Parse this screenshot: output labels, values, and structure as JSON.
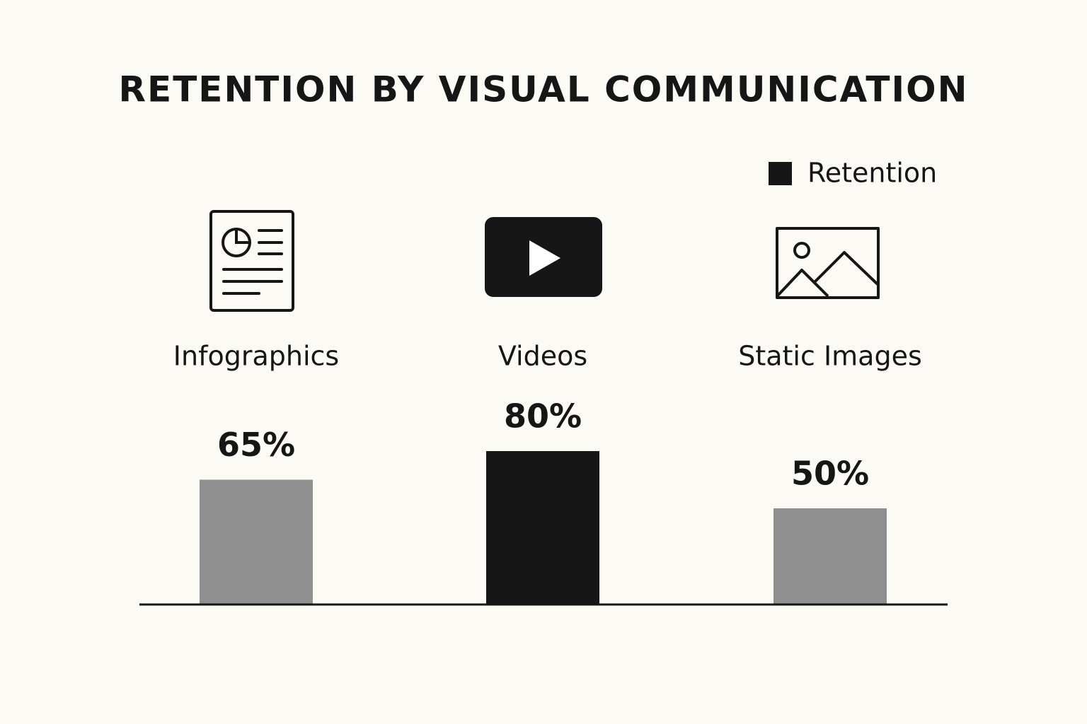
{
  "chart_data": {
    "type": "bar",
    "title": "RETENTION BY VISUAL COMMUNICATION",
    "categories": [
      "Infographics",
      "Videos",
      "Static Images"
    ],
    "series": [
      {
        "name": "Retention",
        "color": "#161616",
        "colors": [
          "#8f8f8f",
          "#161616",
          "#8f8f8f"
        ],
        "values": [
          65,
          80,
          50
        ],
        "value_labels": [
          "65%",
          "80%",
          "50%"
        ]
      }
    ],
    "legend": "top-right"
  }
}
